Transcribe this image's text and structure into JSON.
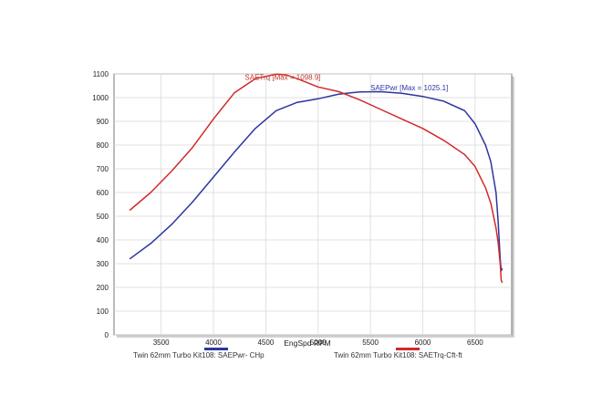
{
  "chart_data": {
    "type": "line",
    "title": "",
    "xlabel": "EngSpd RPM",
    "ylabel": "",
    "xlim": [
      3050,
      6850
    ],
    "ylim": [
      0,
      1100
    ],
    "x_ticks": [
      3500,
      4000,
      4500,
      5000,
      5500,
      6000,
      6500
    ],
    "y_ticks": [
      0,
      100,
      200,
      300,
      400,
      500,
      600,
      700,
      800,
      900,
      1000,
      1100
    ],
    "grid": true,
    "legend_position": "bottom",
    "series": [
      {
        "name": "Twin 62mm Turbo Kit108: SAEPwr- CHp",
        "color": "#2b36a0",
        "x": [
          3200,
          3400,
          3600,
          3800,
          4000,
          4200,
          4400,
          4600,
          4800,
          5000,
          5200,
          5400,
          5600,
          5800,
          6000,
          6200,
          6400,
          6500,
          6600,
          6650,
          6700,
          6720,
          6740,
          6750,
          6760
        ],
        "y": [
          320,
          385,
          465,
          560,
          665,
          770,
          870,
          945,
          980,
          995,
          1015,
          1024,
          1025,
          1018,
          1005,
          985,
          945,
          890,
          800,
          730,
          600,
          480,
          320,
          270,
          280
        ]
      },
      {
        "name": "Twin 62mm Turbo Kit108: SAETrq-Cft-ft",
        "color": "#d12a2a",
        "x": [
          3200,
          3400,
          3600,
          3800,
          4000,
          4200,
          4400,
          4600,
          4700,
          4800,
          5000,
          5200,
          5400,
          5600,
          5800,
          6000,
          6200,
          6400,
          6500,
          6600,
          6650,
          6700,
          6720,
          6740,
          6750,
          6760
        ],
        "y": [
          525,
          600,
          690,
          790,
          910,
          1020,
          1080,
          1099,
          1095,
          1080,
          1045,
          1025,
          990,
          950,
          910,
          870,
          820,
          760,
          710,
          620,
          555,
          450,
          390,
          300,
          230,
          220
        ]
      }
    ],
    "annotations": [
      {
        "text": "SAETrq [Max = 1098.9]",
        "x": 4300,
        "y": 1075,
        "color": "#c0392b"
      },
      {
        "text": "SAEPwr [Max = 1025.1]",
        "x": 5500,
        "y": 1030,
        "color": "#2b36a0"
      }
    ]
  }
}
